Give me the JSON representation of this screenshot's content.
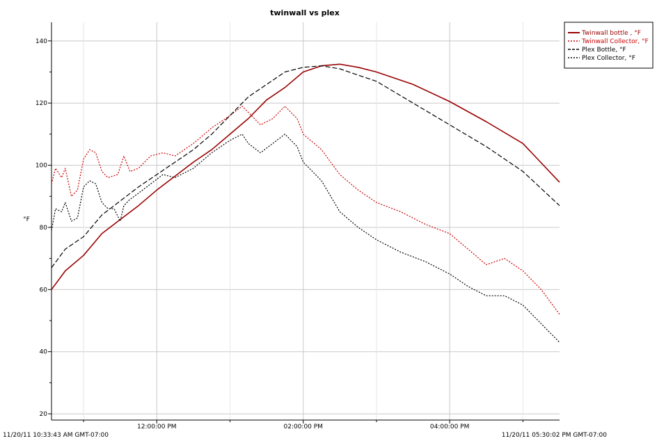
{
  "chart_data": {
    "type": "line",
    "title": "twinwall vs plex",
    "ylabel": "°F",
    "xlabel": "",
    "ylim": [
      18,
      146
    ],
    "y_ticks": [
      20,
      40,
      60,
      80,
      100,
      120,
      140
    ],
    "x_range": [
      "10:33:43",
      "17:30:02"
    ],
    "x_ticks": [
      {
        "t": "12:00:00",
        "label": "12:00:00 PM"
      },
      {
        "t": "14:00:00",
        "label": "02:00:00 PM"
      },
      {
        "t": "16:00:00",
        "label": "04:00:00 PM"
      }
    ],
    "start_label": "11/20/11 10:33:43 AM GMT-07:00",
    "end_label": "11/20/11 05:30:02 PM GMT-07:00",
    "grid": true,
    "legend_position": "top-right",
    "series": [
      {
        "name": "Twinwall bottle , °F",
        "color": "#990000",
        "style": "solid",
        "points": [
          [
            "10:33:43",
            60
          ],
          [
            "10:45",
            66
          ],
          [
            "11:00",
            71
          ],
          [
            "11:15",
            78
          ],
          [
            "11:30",
            82.5
          ],
          [
            "11:45",
            87
          ],
          [
            "12:00",
            92
          ],
          [
            "12:15",
            96.5
          ],
          [
            "12:30",
            101
          ],
          [
            "12:45",
            105
          ],
          [
            "13:00",
            110
          ],
          [
            "13:15",
            115
          ],
          [
            "13:30",
            121
          ],
          [
            "13:45",
            125
          ],
          [
            "14:00",
            130
          ],
          [
            "14:15",
            132
          ],
          [
            "14:30",
            132.5
          ],
          [
            "14:45",
            131.5
          ],
          [
            "15:00",
            130
          ],
          [
            "15:30",
            126
          ],
          [
            "16:00",
            120.5
          ],
          [
            "16:30",
            114
          ],
          [
            "17:00",
            107
          ],
          [
            "17:30:02",
            94.5
          ]
        ]
      },
      {
        "name": "Twinwall Collector, °F",
        "color": "#cc0000",
        "style": "dotted",
        "points": [
          [
            "10:33:43",
            94
          ],
          [
            "10:37",
            99
          ],
          [
            "10:42",
            96
          ],
          [
            "10:45",
            99
          ],
          [
            "10:50",
            90
          ],
          [
            "10:55",
            92
          ],
          [
            "11:00",
            102
          ],
          [
            "11:05",
            105
          ],
          [
            "11:10",
            104
          ],
          [
            "11:15",
            98
          ],
          [
            "11:20",
            96
          ],
          [
            "11:28",
            97
          ],
          [
            "11:33",
            103
          ],
          [
            "11:38",
            98
          ],
          [
            "11:45",
            99
          ],
          [
            "11:55",
            103
          ],
          [
            "12:05",
            104
          ],
          [
            "12:15",
            103
          ],
          [
            "12:30",
            107
          ],
          [
            "12:45",
            112
          ],
          [
            "13:00",
            116
          ],
          [
            "13:10",
            119
          ],
          [
            "13:15",
            117
          ],
          [
            "13:25",
            113
          ],
          [
            "13:35",
            115
          ],
          [
            "13:45",
            119
          ],
          [
            "13:55",
            115
          ],
          [
            "14:00",
            110
          ],
          [
            "14:15",
            105
          ],
          [
            "14:30",
            97
          ],
          [
            "14:45",
            92
          ],
          [
            "15:00",
            88
          ],
          [
            "15:20",
            85
          ],
          [
            "15:40",
            81
          ],
          [
            "16:00",
            78
          ],
          [
            "16:15",
            73
          ],
          [
            "16:30",
            68
          ],
          [
            "16:45",
            70
          ],
          [
            "17:00",
            66
          ],
          [
            "17:15",
            60
          ],
          [
            "17:30:02",
            52
          ]
        ]
      },
      {
        "name": "Plex Bottle, °F",
        "color": "#000000",
        "style": "dashed",
        "points": [
          [
            "10:33:43",
            67
          ],
          [
            "10:45",
            73
          ],
          [
            "11:00",
            77
          ],
          [
            "11:15",
            84
          ],
          [
            "11:30",
            88.5
          ],
          [
            "11:45",
            93
          ],
          [
            "12:00",
            97
          ],
          [
            "12:15",
            101
          ],
          [
            "12:30",
            105
          ],
          [
            "12:45",
            110
          ],
          [
            "13:00",
            116
          ],
          [
            "13:15",
            122
          ],
          [
            "13:30",
            126
          ],
          [
            "13:45",
            130
          ],
          [
            "14:00",
            131.5
          ],
          [
            "14:15",
            132
          ],
          [
            "14:30",
            131
          ],
          [
            "14:45",
            129
          ],
          [
            "15:00",
            127
          ],
          [
            "15:30",
            120
          ],
          [
            "16:00",
            113
          ],
          [
            "16:30",
            106
          ],
          [
            "17:00",
            98
          ],
          [
            "17:30:02",
            87
          ]
        ]
      },
      {
        "name": "Plex Collector, °F",
        "color": "#000000",
        "style": "dotted",
        "points": [
          [
            "10:33:43",
            79
          ],
          [
            "10:37",
            86
          ],
          [
            "10:42",
            85
          ],
          [
            "10:45",
            88
          ],
          [
            "10:50",
            82
          ],
          [
            "10:55",
            83
          ],
          [
            "11:00",
            93
          ],
          [
            "11:05",
            95
          ],
          [
            "11:10",
            94
          ],
          [
            "11:15",
            88
          ],
          [
            "11:20",
            86
          ],
          [
            "11:25",
            86
          ],
          [
            "11:30",
            82
          ],
          [
            "11:33",
            87
          ],
          [
            "11:38",
            89
          ],
          [
            "11:45",
            91
          ],
          [
            "11:55",
            94
          ],
          [
            "12:05",
            97
          ],
          [
            "12:15",
            96
          ],
          [
            "12:30",
            99
          ],
          [
            "12:45",
            104
          ],
          [
            "13:00",
            108
          ],
          [
            "13:10",
            110
          ],
          [
            "13:15",
            107
          ],
          [
            "13:25",
            104
          ],
          [
            "13:35",
            107
          ],
          [
            "13:45",
            110
          ],
          [
            "13:55",
            106
          ],
          [
            "14:00",
            101
          ],
          [
            "14:15",
            95
          ],
          [
            "14:30",
            85
          ],
          [
            "14:45",
            80
          ],
          [
            "15:00",
            76
          ],
          [
            "15:20",
            72
          ],
          [
            "15:40",
            69
          ],
          [
            "16:00",
            65
          ],
          [
            "16:15",
            61
          ],
          [
            "16:30",
            58
          ],
          [
            "16:45",
            58
          ],
          [
            "17:00",
            55
          ],
          [
            "17:15",
            49
          ],
          [
            "17:30:02",
            43
          ]
        ]
      }
    ]
  }
}
